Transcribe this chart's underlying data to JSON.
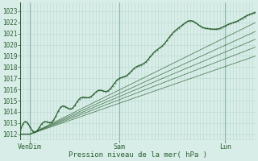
{
  "xlabel": "Pression niveau de la mer( hPa )",
  "ylim": [
    1011.5,
    1023.8
  ],
  "xlim": [
    0.0,
    1.0
  ],
  "yticks": [
    1012,
    1013,
    1014,
    1015,
    1016,
    1017,
    1018,
    1019,
    1020,
    1021,
    1022,
    1023
  ],
  "xtick_labels": [
    "VenDim",
    "Sam",
    "Lun"
  ],
  "xtick_positions": [
    0.04,
    0.42,
    0.87
  ],
  "dark_green": "#2a6030",
  "light_green_bg": "#d8ede8",
  "grid_minor_color": "#b8d8d0",
  "grid_major_color": "#90b8b0",
  "n_minor_vlines": 72,
  "figsize": [
    3.2,
    2.0
  ],
  "dpi": 100
}
